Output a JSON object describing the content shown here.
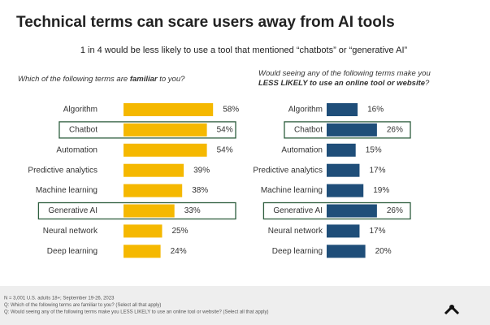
{
  "title": "Technical terms can scare users away from AI tools",
  "subtitle": "1 in 4 would be less likely to use a tool that mentioned “chatbots” or “generative AI”",
  "chart_data": [
    {
      "type": "bar",
      "question": [
        "Which of the following terms are ",
        "familiar",
        " to you?"
      ],
      "categories": [
        "Algorithm",
        "Chatbot",
        "Automation",
        "Predictive analytics",
        "Machine learning",
        "Generative AI",
        "Neural network",
        "Deep learning"
      ],
      "values": [
        58,
        54,
        54,
        39,
        38,
        33,
        25,
        24
      ],
      "value_labels": [
        "58%",
        "54%",
        "54%",
        "39%",
        "38%",
        "33%",
        "25%",
        "24%"
      ],
      "color": "#f5b800",
      "highlight": [
        1,
        5
      ]
    },
    {
      "type": "bar",
      "question": [
        "Would seeing any of the following terms make you ",
        "LESS LIKELY to use an online tool or website",
        "?"
      ],
      "categories": [
        "Algorithm",
        "Chatbot",
        "Automation",
        "Predictive analytics",
        "Machine learning",
        "Generative AI",
        "Neural network",
        "Deep learning"
      ],
      "values": [
        16,
        26,
        15,
        17,
        19,
        26,
        17,
        20
      ],
      "value_labels": [
        "16%",
        "26%",
        "15%",
        "17%",
        "19%",
        "26%",
        "17%",
        "20%"
      ],
      "color": "#1f4e79",
      "highlight": [
        1,
        5
      ]
    }
  ],
  "footnotes": [
    "N = 3,001 U.S. adults 18+; September 19-26, 2023",
    "Q: Which of the following terms are familiar to you? (Select all that apply)",
    "Q: Would seeing any of the following terms make you LESS LIKELY to use an online tool or website? (Select all that apply)"
  ]
}
